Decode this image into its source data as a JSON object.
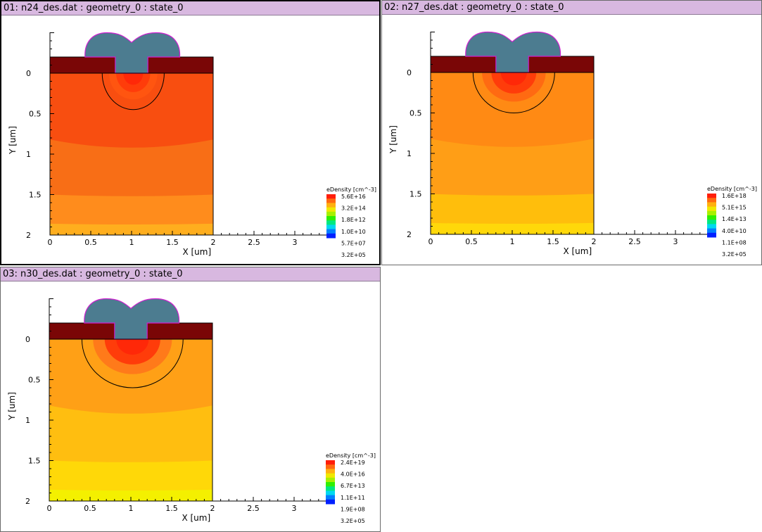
{
  "plots": [
    {
      "title": "01: n24_des.dat : geometry_0 : state_0",
      "xlabel": "X [um]",
      "ylabel": "Y [um]",
      "x_ticks": [
        "0",
        "0.5",
        "1",
        "1.5",
        "2",
        "2.5",
        "3"
      ],
      "y_ticks": [
        "0",
        "0.5",
        "1",
        "1.5",
        "2"
      ],
      "legend_title": "eDensity [cm^-3]",
      "legend_values": [
        "5.6E+16",
        "3.2E+14",
        "1.8E+12",
        "1.0E+10",
        "5.7E+07",
        "3.2E+05"
      ],
      "active": true,
      "colors": {
        "bulk": [
          "#f84e10",
          "#f86e16",
          "#ff8c1c",
          "#ffae1e"
        ],
        "core": "#ff3c0a",
        "core2": "#ff5510"
      },
      "contour": {
        "depth": 0.45,
        "half_width": 0.38
      }
    },
    {
      "title": "02: n27_des.dat : geometry_0 : state_0",
      "xlabel": "X [um]",
      "ylabel": "Y [um]",
      "x_ticks": [
        "0",
        "0.5",
        "1",
        "1.5",
        "2",
        "2.5",
        "3"
      ],
      "y_ticks": [
        "0",
        "0.5",
        "1",
        "1.5",
        "2"
      ],
      "legend_title": "eDensity [cm^-3]",
      "legend_values": [
        "1.6E+18",
        "5.1E+15",
        "1.4E+13",
        "4.0E+10",
        "1.1E+08",
        "3.2E+05"
      ],
      "active": false,
      "colors": {
        "bulk": [
          "#ff8a14",
          "#ff9e16",
          "#ffbe0c",
          "#ffd80a"
        ],
        "core": "#ff3c0a",
        "core2": "#ff6a12"
      },
      "contour": {
        "depth": 0.5,
        "half_width": 0.5
      }
    },
    {
      "title": "03: n30_des.dat : geometry_0 : state_0",
      "xlabel": "X [um]",
      "ylabel": "Y [um]",
      "x_ticks": [
        "0",
        "0.5",
        "1",
        "1.5",
        "2",
        "2.5",
        "3"
      ],
      "y_ticks": [
        "0",
        "0.5",
        "1",
        "1.5",
        "2"
      ],
      "legend_title": "eDensity [cm^-3]",
      "legend_values": [
        "2.4E+19",
        "4.0E+16",
        "6.7E+13",
        "1.1E+11",
        "1.9E+08",
        "3.2E+05"
      ],
      "active": false,
      "colors": {
        "bulk": [
          "#ffa016",
          "#ffbe10",
          "#ffd808",
          "#f4f000"
        ],
        "core": "#ff3c0a",
        "core2": "#ff7a1a"
      },
      "contour": {
        "depth": 0.6,
        "half_width": 0.62
      }
    }
  ]
}
